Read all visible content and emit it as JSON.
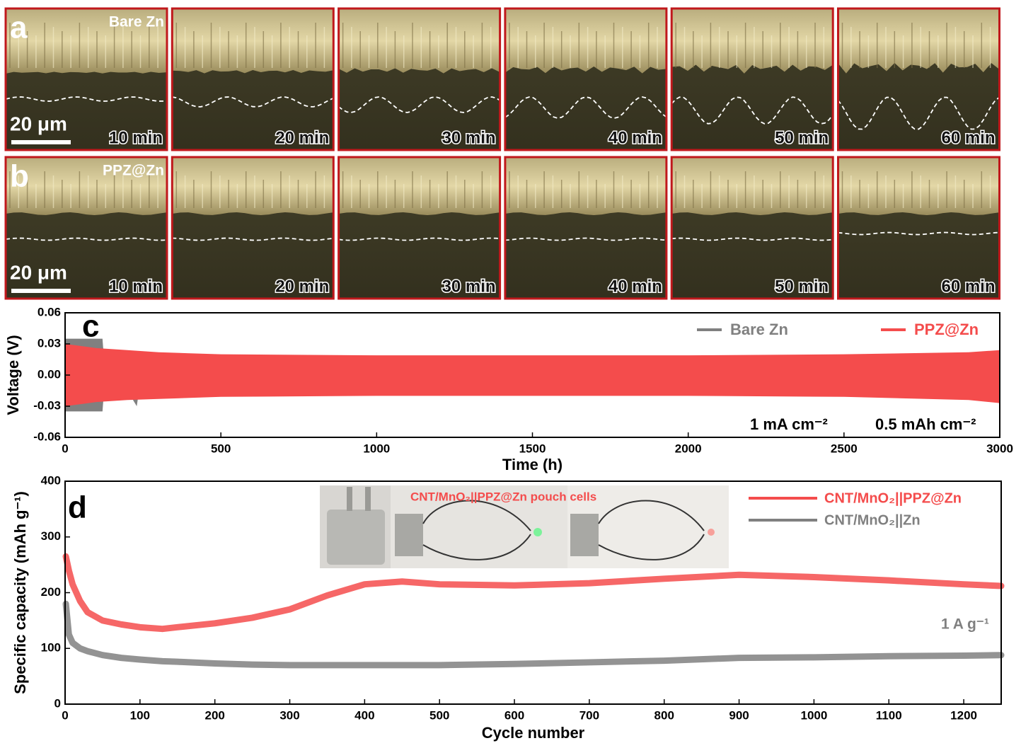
{
  "micrographs": {
    "rows": [
      {
        "label": "a",
        "sample": "Bare Zn",
        "scale_bar": "20 μm",
        "times": [
          "10 min",
          "20 min",
          "30 min",
          "40 min",
          "50 min",
          "60 min"
        ]
      },
      {
        "label": "b",
        "sample": "PPZ@Zn",
        "scale_bar": "20 μm",
        "times": [
          "10 min",
          "20 min",
          "30 min",
          "40 min",
          "50 min",
          "60 min"
        ]
      }
    ]
  },
  "chart_data": [
    {
      "type": "area",
      "panel_label": "c",
      "x_label": "Time (h)",
      "y_label": "Voltage (V)",
      "xlim": [
        0,
        3000
      ],
      "xticks": [
        0,
        500,
        1000,
        1500,
        2000,
        2500,
        3000
      ],
      "ylim": [
        -0.06,
        0.06
      ],
      "yticks": [
        -0.06,
        -0.03,
        {
          "value": 0,
          "label": "0.00"
        },
        0.03,
        0.06
      ],
      "legend": "top-right",
      "series": [
        {
          "name": "Bare Zn",
          "color": "#808080",
          "x": [
            0,
            50,
            120,
            125,
            180,
            200,
            230,
            240
          ],
          "upper": [
            0.035,
            0.035,
            0.035,
            0.015,
            0.01,
            0.015,
            0.02,
            0.01
          ],
          "lower": [
            -0.035,
            -0.035,
            -0.035,
            -0.015,
            -0.01,
            -0.015,
            -0.03,
            -0.01
          ]
        },
        {
          "name": "PPZ@Zn",
          "color": "#f44c4c",
          "x": [
            0,
            50,
            100,
            200,
            300,
            400,
            500,
            1000,
            1500,
            2000,
            2500,
            2900,
            3000
          ],
          "upper": [
            0.03,
            0.028,
            0.026,
            0.024,
            0.022,
            0.021,
            0.02,
            0.019,
            0.019,
            0.019,
            0.02,
            0.022,
            0.024
          ],
          "lower": [
            -0.03,
            -0.028,
            -0.026,
            -0.024,
            -0.023,
            -0.022,
            -0.021,
            -0.02,
            -0.02,
            -0.02,
            -0.021,
            -0.024,
            -0.027
          ]
        }
      ],
      "annotations": [
        "1 mA cm⁻²",
        "0.5 mAh cm⁻²"
      ]
    },
    {
      "type": "line",
      "panel_label": "d",
      "x_label": "Cycle number",
      "y_label": "Specific capacity (mAh g⁻¹)",
      "xlim": [
        0,
        1250
      ],
      "xticks": [
        0,
        100,
        200,
        300,
        400,
        500,
        600,
        700,
        800,
        900,
        1000,
        1100,
        1200
      ],
      "ylim": [
        0,
        400
      ],
      "yticks": [
        0,
        100,
        200,
        300,
        400
      ],
      "legend": "top-right",
      "x": [
        1,
        5,
        10,
        20,
        30,
        50,
        75,
        100,
        130,
        150,
        200,
        250,
        300,
        350,
        400,
        450,
        500,
        600,
        700,
        800,
        900,
        1000,
        1100,
        1200,
        1250
      ],
      "series": [
        {
          "name": "CNT/MnO₂||PPZ@Zn",
          "color": "#f44c4c",
          "values": [
            265,
            240,
            215,
            185,
            165,
            150,
            143,
            138,
            135,
            138,
            145,
            155,
            170,
            195,
            215,
            220,
            215,
            213,
            217,
            225,
            232,
            228,
            222,
            215,
            212
          ]
        },
        {
          "name": "CNT/MnO₂||Zn",
          "color": "#808080",
          "values": [
            180,
            125,
            110,
            100,
            95,
            88,
            83,
            80,
            77,
            76,
            73,
            71,
            70,
            70,
            70,
            70,
            70,
            72,
            75,
            78,
            83,
            84,
            86,
            87,
            88
          ]
        }
      ],
      "annotations": [
        "1 A g⁻¹",
        "CNT/MnO₂||PPZ@Zn pouch cells"
      ]
    }
  ]
}
